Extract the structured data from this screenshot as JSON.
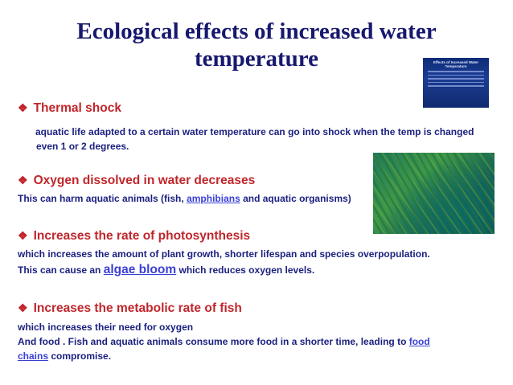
{
  "title_line1": "Ecological effects of increased water",
  "title_line2": "temperature",
  "bullet_glyph": "❖",
  "sections": [
    {
      "heading": "Thermal shock",
      "line1": "aquatic life adapted to a certain water temperature can go into shock when the temp is changed",
      "line2": "even 1 or 2 degrees."
    },
    {
      "heading": "Oxygen dissolved in water decreases",
      "line1_pre": "This can harm aquatic animals (fish, ",
      "line1_link": "amphibians",
      "line1_post": " and aquatic organisms)"
    },
    {
      "heading": "Increases the rate of photosynthesis",
      "line1": "which increases the amount of plant growth, shorter lifespan and species overpopulation.",
      "line2_pre": "This can cause an ",
      "line2_link": "algae bloom",
      "line2_post": " which reduces oxygen levels."
    },
    {
      "heading": "Increases the metabolic rate of fish",
      "line1": "which increases their need for oxygen",
      "line2_pre": "And food . Fish and aquatic animals consume more food in a shorter time, leading to ",
      "line2_link": "food",
      "line3_link": "chains",
      "line3_post": "  compromise."
    }
  ],
  "thumbnail": {
    "title": "Effects of Increased Water Temperature"
  }
}
